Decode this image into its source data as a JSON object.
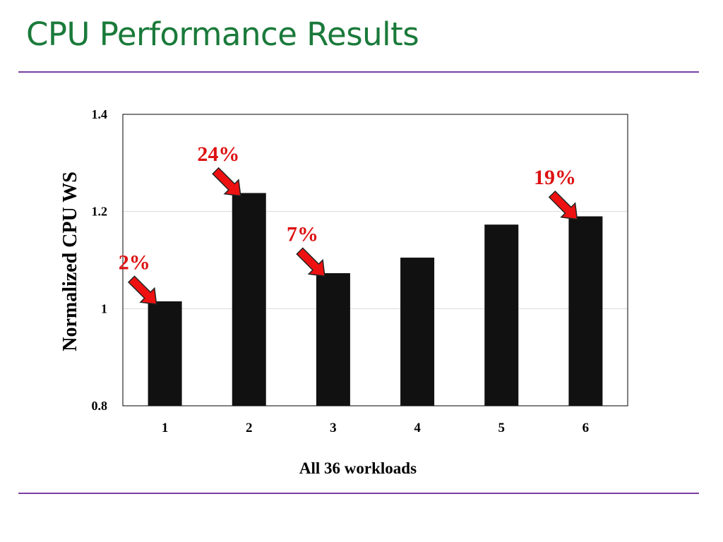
{
  "slide": {
    "title": "CPU Performance Results"
  },
  "colors": {
    "title": "#1a7a3a",
    "rule": "#7b3fa0",
    "bar": "#111111",
    "annotation": "#dd1111",
    "arrow_fill": "#ee1111"
  },
  "chart_data": {
    "type": "bar",
    "title": "",
    "xlabel": "All 36 workloads",
    "ylabel": "Normalized CPU WS",
    "categories": [
      "1",
      "2",
      "3",
      "4",
      "5",
      "6"
    ],
    "values": [
      1.015,
      1.238,
      1.073,
      1.105,
      1.173,
      1.19
    ],
    "ylim": [
      0.8,
      1.4
    ],
    "yticks": [
      "0.8",
      "1",
      "1.2",
      "1.4"
    ],
    "grid": true,
    "annotations": [
      {
        "category": "1",
        "label": "2%"
      },
      {
        "category": "2",
        "label": "24%"
      },
      {
        "category": "3",
        "label": "7%"
      },
      {
        "category": "6",
        "label": "19%"
      }
    ]
  }
}
